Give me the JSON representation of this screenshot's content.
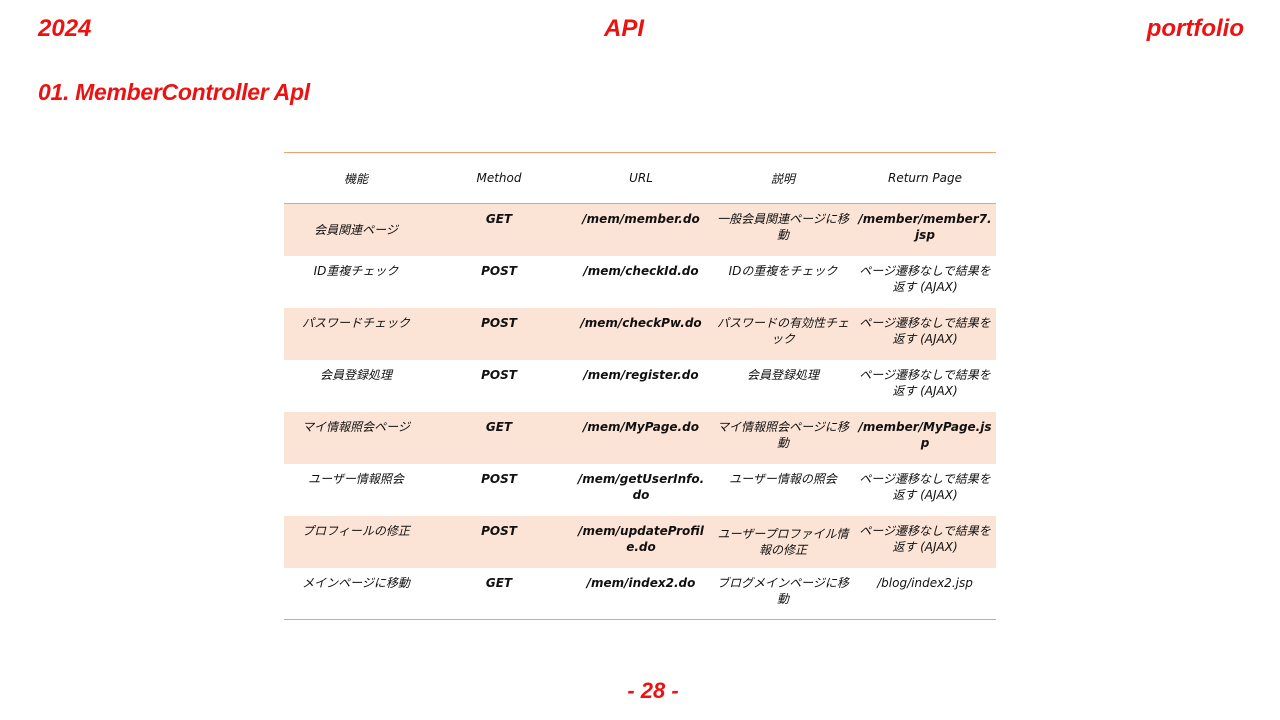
{
  "header": {
    "year": "2024",
    "center": "API",
    "right": "portfolio"
  },
  "section_title": "01. MemberController Apl",
  "table": {
    "headers": [
      "機能",
      "Method",
      "URL",
      "説明",
      "Return Page"
    ],
    "rows": [
      {
        "func": "会員関連ページ",
        "method": "GET",
        "url": "/mem/member.do",
        "desc": "一般会員関連ページに移動",
        "ret": "/member/member7.jsp",
        "shade": true
      },
      {
        "func": "ID重複チェック",
        "method": "POST",
        "url": "/mem/checkId.do",
        "desc": "IDの重複をチェック",
        "ret": "ページ遷移なしで結果を返す (AJAX)",
        "shade": false
      },
      {
        "func": "パスワードチェック",
        "method": "POST",
        "url": "/mem/checkPw.do",
        "desc": "パスワードの有効性チェック",
        "ret": "ページ遷移なしで結果を返す (AJAX)",
        "shade": true
      },
      {
        "func": "会員登録処理",
        "method": "POST",
        "url": "/mem/register.do",
        "desc": "会員登録処理",
        "ret": "ページ遷移なしで結果を返す (AJAX)",
        "shade": false
      },
      {
        "func": "マイ情報照会ページ",
        "method": "GET",
        "url": "/mem/MyPage.do",
        "desc": "マイ情報照会ページに移動",
        "ret": "/member/MyPage.jsp",
        "shade": true
      },
      {
        "func": "ユーザー情報照会",
        "method": "POST",
        "url": "/mem/getUserInfo.do",
        "desc": "ユーザー情報の照会",
        "ret": "ページ遷移なしで結果を返す (AJAX)",
        "shade": false
      },
      {
        "func": "プロフィールの修正",
        "method": "POST",
        "url": "/mem/updateProfile.do",
        "desc": "ユーザープロファイル情報の修正",
        "ret": "ページ遷移なしで結果を返す (AJAX)",
        "shade": true
      },
      {
        "func": "メインページに移動",
        "method": "GET",
        "url": "/mem/index2.do",
        "desc": "ブログメインページに移動",
        "ret": "/blog/index2.jsp",
        "shade": false
      }
    ]
  },
  "page_number": "- 28 -"
}
